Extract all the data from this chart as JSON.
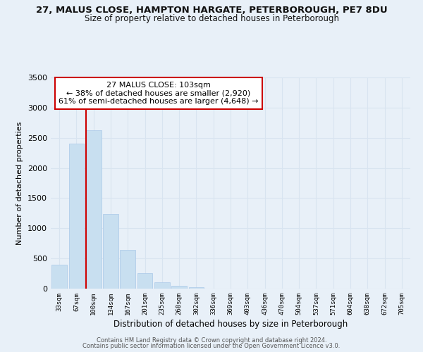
{
  "title": "27, MALUS CLOSE, HAMPTON HARGATE, PETERBOROUGH, PE7 8DU",
  "subtitle": "Size of property relative to detached houses in Peterborough",
  "xlabel": "Distribution of detached houses by size in Peterborough",
  "ylabel": "Number of detached properties",
  "bar_color": "#c8dff0",
  "bar_edge_color": "#aac8e8",
  "vline_color": "#cc0000",
  "vline_x_index": 2,
  "categories": [
    "33sqm",
    "67sqm",
    "100sqm",
    "134sqm",
    "167sqm",
    "201sqm",
    "235sqm",
    "268sqm",
    "302sqm",
    "336sqm",
    "369sqm",
    "403sqm",
    "436sqm",
    "470sqm",
    "504sqm",
    "537sqm",
    "571sqm",
    "604sqm",
    "638sqm",
    "672sqm",
    "705sqm"
  ],
  "values": [
    400,
    2400,
    2620,
    1240,
    640,
    255,
    105,
    50,
    20,
    0,
    0,
    0,
    0,
    0,
    0,
    0,
    0,
    0,
    0,
    0,
    0
  ],
  "ylim": [
    0,
    3500
  ],
  "yticks": [
    0,
    500,
    1000,
    1500,
    2000,
    2500,
    3000,
    3500
  ],
  "annotation_title": "27 MALUS CLOSE: 103sqm",
  "annotation_line1": "← 38% of detached houses are smaller (2,920)",
  "annotation_line2": "61% of semi-detached houses are larger (4,648) →",
  "annotation_box_color": "#ffffff",
  "annotation_box_edge": "#cc0000",
  "grid_color": "#d8e4f0",
  "bg_color": "#e8f0f8",
  "footer1": "Contains HM Land Registry data © Crown copyright and database right 2024.",
  "footer2": "Contains public sector information licensed under the Open Government Licence v3.0."
}
